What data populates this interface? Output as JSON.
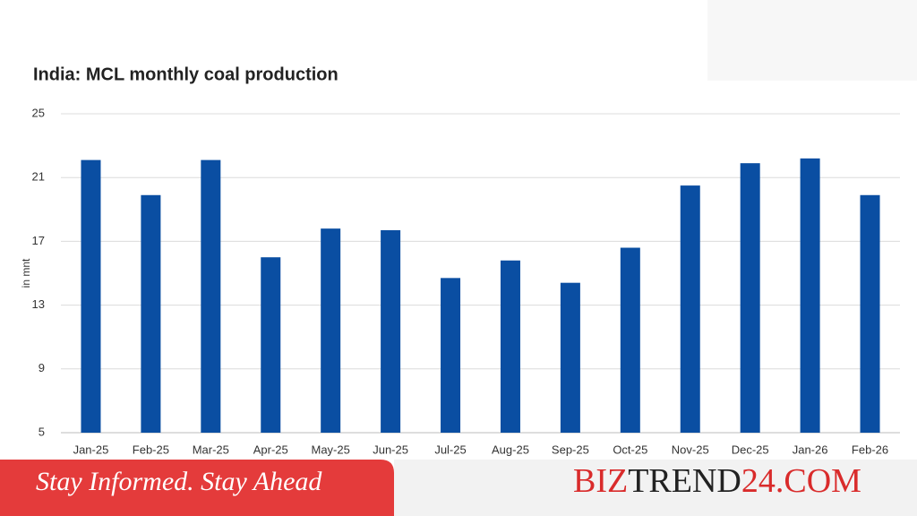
{
  "chart_data": {
    "type": "bar",
    "title": "India: MCL monthly coal production",
    "y_label": "in mnt",
    "categories": [
      "Jan-25",
      "Feb-25",
      "Mar-25",
      "Apr-25",
      "May-25",
      "Jun-25",
      "Jul-25",
      "Aug-25",
      "Sep-25",
      "Oct-25",
      "Nov-25",
      "Dec-25",
      "Jan-26",
      "Feb-26"
    ],
    "values": [
      22.1,
      19.9,
      22.1,
      16.0,
      17.8,
      17.7,
      14.7,
      15.8,
      14.4,
      16.6,
      20.5,
      21.9,
      22.2,
      19.9
    ],
    "color": "#0a4ea2",
    "ylim": [
      5,
      25
    ],
    "yticks": [
      5,
      9,
      13,
      17,
      21,
      25
    ],
    "grid": true
  },
  "footer": {
    "tagline": "Stay Informed. Stay Ahead",
    "brand": [
      "BIZ",
      "TREND",
      "24.COM"
    ]
  }
}
